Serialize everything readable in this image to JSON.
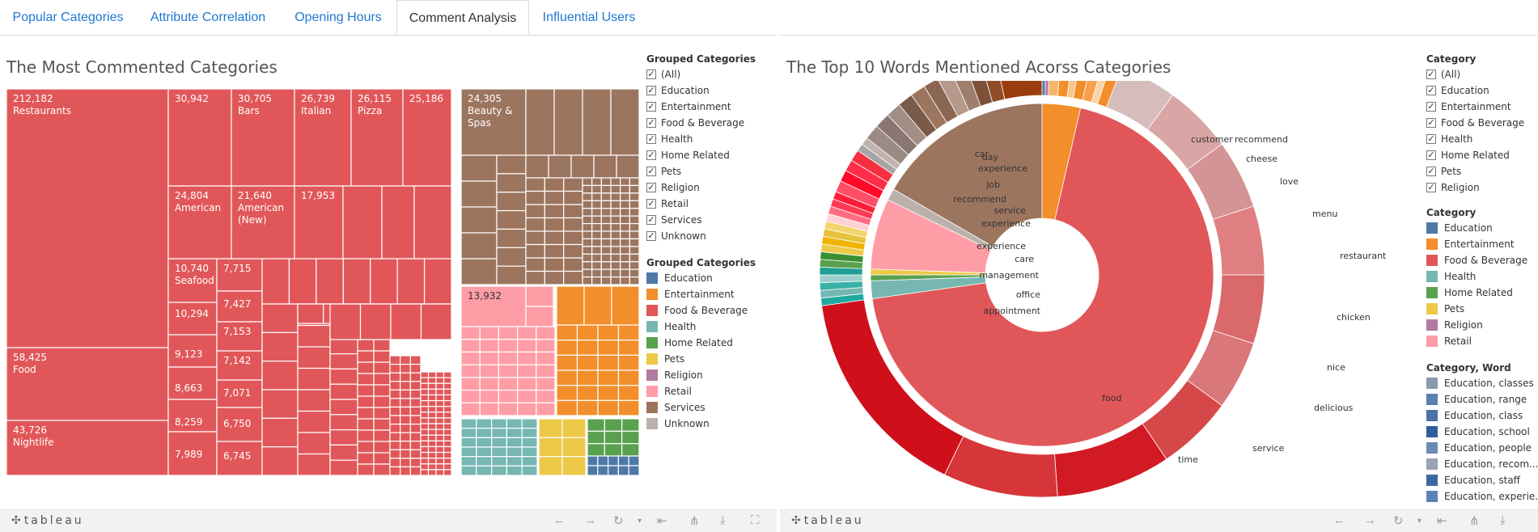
{
  "tabs": [
    {
      "label": "Popular Categories",
      "active": false
    },
    {
      "label": "Attribute Correlation",
      "active": false
    },
    {
      "label": "Opening Hours",
      "active": false
    },
    {
      "label": "Comment Analysis",
      "active": true
    },
    {
      "label": "Influential Users",
      "active": false
    }
  ],
  "left": {
    "title": "The Most Commented Categories",
    "filter": {
      "title": "Grouped Categories",
      "items": [
        "(All)",
        "Education",
        "Entertainment",
        "Food & Beverage",
        "Health",
        "Home Related",
        "Pets",
        "Religion",
        "Retail",
        "Services",
        "Unknown"
      ]
    },
    "color_legend": {
      "title": "Grouped Categories",
      "items": [
        {
          "label": "Education",
          "color": "#4e79a7"
        },
        {
          "label": "Entertainment",
          "color": "#f28e2b"
        },
        {
          "label": "Food & Beverage",
          "color": "#e15759"
        },
        {
          "label": "Health",
          "color": "#76b7b2"
        },
        {
          "label": "Home Related",
          "color": "#59a14f"
        },
        {
          "label": "Pets",
          "color": "#edc948"
        },
        {
          "label": "Religion",
          "color": "#b07aa1"
        },
        {
          "label": "Retail",
          "color": "#ff9da7"
        },
        {
          "label": "Services",
          "color": "#9c755f"
        },
        {
          "label": "Unknown",
          "color": "#bab0ac"
        }
      ]
    },
    "treemap_labels": [
      {
        "value": "212,182",
        "name": "Restaurants"
      },
      {
        "value": "30,942",
        "name": ""
      },
      {
        "value": "30,705",
        "name": "Bars"
      },
      {
        "value": "26,739",
        "name": "Italian"
      },
      {
        "value": "26,115",
        "name": "Pizza"
      },
      {
        "value": "25,186",
        "name": ""
      },
      {
        "value": "24,305",
        "name": "Beauty &\nSpas"
      },
      {
        "value": "24,804",
        "name": "American"
      },
      {
        "value": "21,640",
        "name": "American\n(New)"
      },
      {
        "value": "17,953",
        "name": ""
      },
      {
        "value": "10,740",
        "name": "Seafood"
      },
      {
        "value": "7,715",
        "name": ""
      },
      {
        "value": "10,294",
        "name": ""
      },
      {
        "value": "7,427",
        "name": ""
      },
      {
        "value": "7,153",
        "name": ""
      },
      {
        "value": "9,123",
        "name": ""
      },
      {
        "value": "7,142",
        "name": ""
      },
      {
        "value": "8,663",
        "name": ""
      },
      {
        "value": "7,071",
        "name": ""
      },
      {
        "value": "58,425",
        "name": "Food"
      },
      {
        "value": "8,259",
        "name": ""
      },
      {
        "value": "6,750",
        "name": ""
      },
      {
        "value": "7,989",
        "name": ""
      },
      {
        "value": "6,745",
        "name": ""
      },
      {
        "value": "43,726",
        "name": "Nightlife"
      },
      {
        "value": "13,932",
        "name": ""
      }
    ]
  },
  "right": {
    "title": "The Top 10  Words Mentioned Acorss Categories",
    "filter": {
      "title": "Category",
      "items": [
        "(All)",
        "Education",
        "Entertainment",
        "Food & Beverage",
        "Health",
        "Home Related",
        "Pets",
        "Religion"
      ]
    },
    "color_legend": {
      "title": "Category",
      "items": [
        {
          "label": "Education",
          "color": "#4e79a7"
        },
        {
          "label": "Entertainment",
          "color": "#f28e2b"
        },
        {
          "label": "Food & Beverage",
          "color": "#e15759"
        },
        {
          "label": "Health",
          "color": "#76b7b2"
        },
        {
          "label": "Home Related",
          "color": "#59a14f"
        },
        {
          "label": "Pets",
          "color": "#edc948"
        },
        {
          "label": "Religion",
          "color": "#b07aa1"
        },
        {
          "label": "Retail",
          "color": "#ff9da7"
        }
      ]
    },
    "word_legend": {
      "title": "Category, Word",
      "items": [
        {
          "label": "Education, classes",
          "color": "#8a9bb0"
        },
        {
          "label": "Education, range",
          "color": "#5b7fb0"
        },
        {
          "label": "Education, class",
          "color": "#4a72a6"
        },
        {
          "label": "Education, school",
          "color": "#2f5f9e"
        },
        {
          "label": "Education, people",
          "color": "#6e8bb3"
        },
        {
          "label": "Education, recom...",
          "color": "#9aa3b0"
        },
        {
          "label": "Education, staff",
          "color": "#3d68a3"
        },
        {
          "label": "Education, experie...",
          "color": "#5a82b5"
        }
      ]
    },
    "donut_labels": [
      "customer",
      "recommend",
      "cheese",
      "love",
      "menu",
      "restaurant",
      "chicken",
      "nice",
      "delicious",
      "service",
      "time",
      "food",
      "appointment",
      "office",
      "management",
      "care",
      "experience",
      "experience",
      "service",
      "recommend",
      "job",
      "experience",
      "day",
      "car"
    ]
  },
  "footer": {
    "logo": "tableau"
  }
}
